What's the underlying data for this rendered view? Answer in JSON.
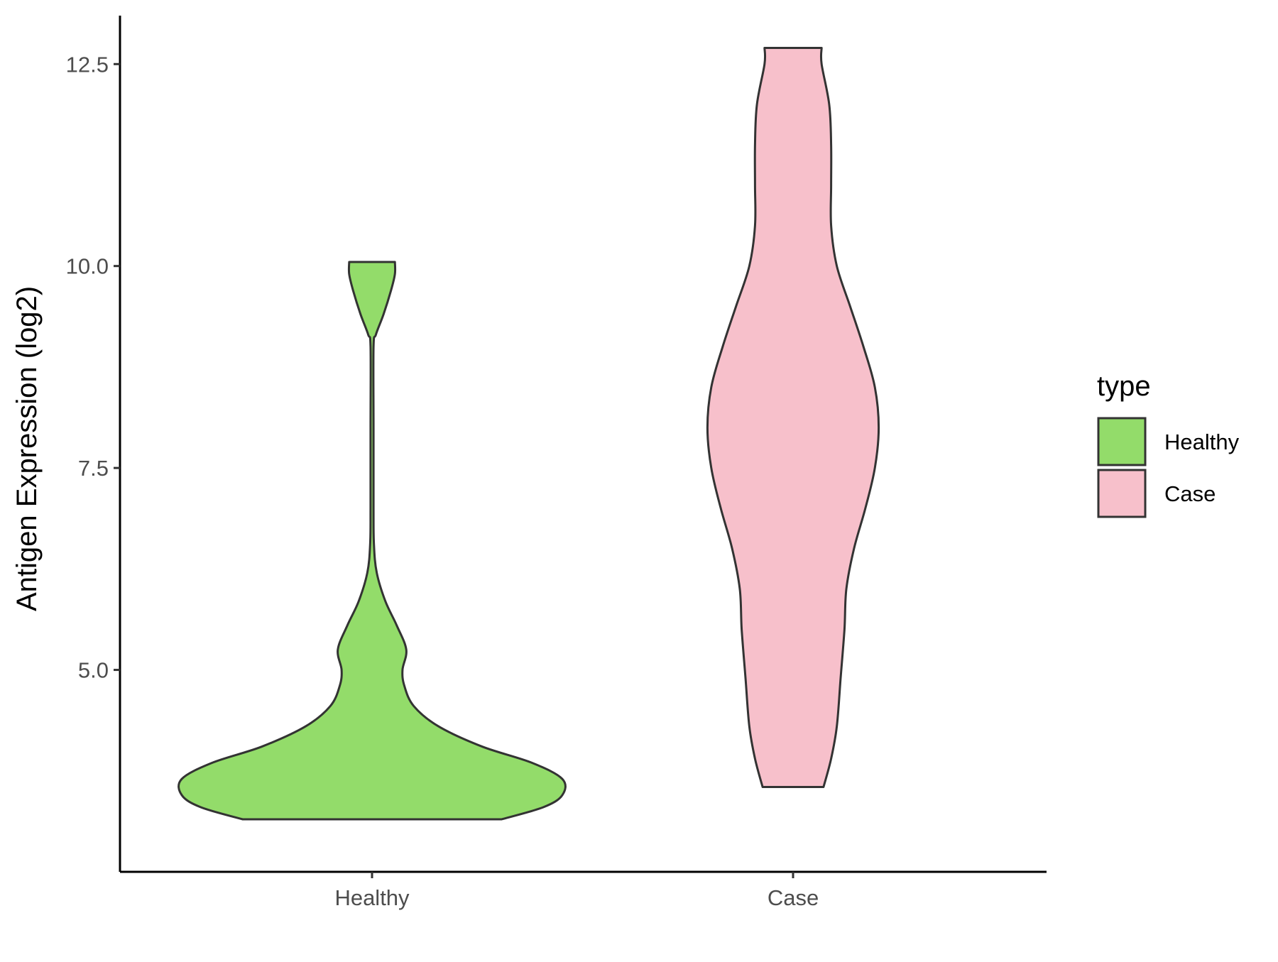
{
  "chart_data": {
    "type": "violin",
    "title": "",
    "xlabel": "",
    "ylabel": "Antigen Expression (log2)",
    "ylim": [
      2.5,
      13.1
    ],
    "y_ticks": [
      {
        "value": 5.0,
        "label": "5.0"
      },
      {
        "value": 7.5,
        "label": "7.5"
      },
      {
        "value": 10.0,
        "label": "10.0"
      },
      {
        "value": 12.5,
        "label": "12.5"
      }
    ],
    "categories": [
      "Healthy",
      "Case"
    ],
    "grid": false,
    "legend": {
      "title": "type",
      "placement": "right",
      "entries": [
        {
          "label": "Healthy",
          "color": "#93dc6a"
        },
        {
          "label": "Case",
          "color": "#f7c0cb"
        }
      ]
    },
    "series": [
      {
        "name": "Healthy",
        "color": "#93dc6a",
        "min": 3.15,
        "max": 10.05,
        "density": [
          [
            3.15,
            0.68
          ],
          [
            3.3,
            0.9
          ],
          [
            3.45,
            1.0
          ],
          [
            3.65,
            1.0
          ],
          [
            3.85,
            0.84
          ],
          [
            4.05,
            0.58
          ],
          [
            4.3,
            0.35
          ],
          [
            4.55,
            0.22
          ],
          [
            4.8,
            0.17
          ],
          [
            5.0,
            0.16
          ],
          [
            5.25,
            0.18
          ],
          [
            5.55,
            0.13
          ],
          [
            5.85,
            0.07
          ],
          [
            6.2,
            0.025
          ],
          [
            6.55,
            0.01
          ],
          [
            7.0,
            0.008
          ],
          [
            8.0,
            0.008
          ],
          [
            9.0,
            0.008
          ],
          [
            9.15,
            0.02
          ],
          [
            9.4,
            0.06
          ],
          [
            9.7,
            0.1
          ],
          [
            9.9,
            0.12
          ],
          [
            10.05,
            0.12
          ]
        ]
      },
      {
        "name": "Case",
        "color": "#f7c0cb",
        "min": 3.55,
        "max": 12.7,
        "density": [
          [
            3.55,
            0.16
          ],
          [
            3.9,
            0.2
          ],
          [
            4.3,
            0.23
          ],
          [
            4.9,
            0.25
          ],
          [
            5.5,
            0.27
          ],
          [
            6.0,
            0.28
          ],
          [
            6.5,
            0.32
          ],
          [
            7.0,
            0.38
          ],
          [
            7.5,
            0.43
          ],
          [
            8.0,
            0.45
          ],
          [
            8.5,
            0.43
          ],
          [
            9.0,
            0.37
          ],
          [
            9.5,
            0.3
          ],
          [
            10.0,
            0.23
          ],
          [
            10.5,
            0.2
          ],
          [
            11.0,
            0.2
          ],
          [
            11.5,
            0.2
          ],
          [
            12.0,
            0.19
          ],
          [
            12.5,
            0.15
          ],
          [
            12.7,
            0.15
          ]
        ]
      }
    ]
  }
}
